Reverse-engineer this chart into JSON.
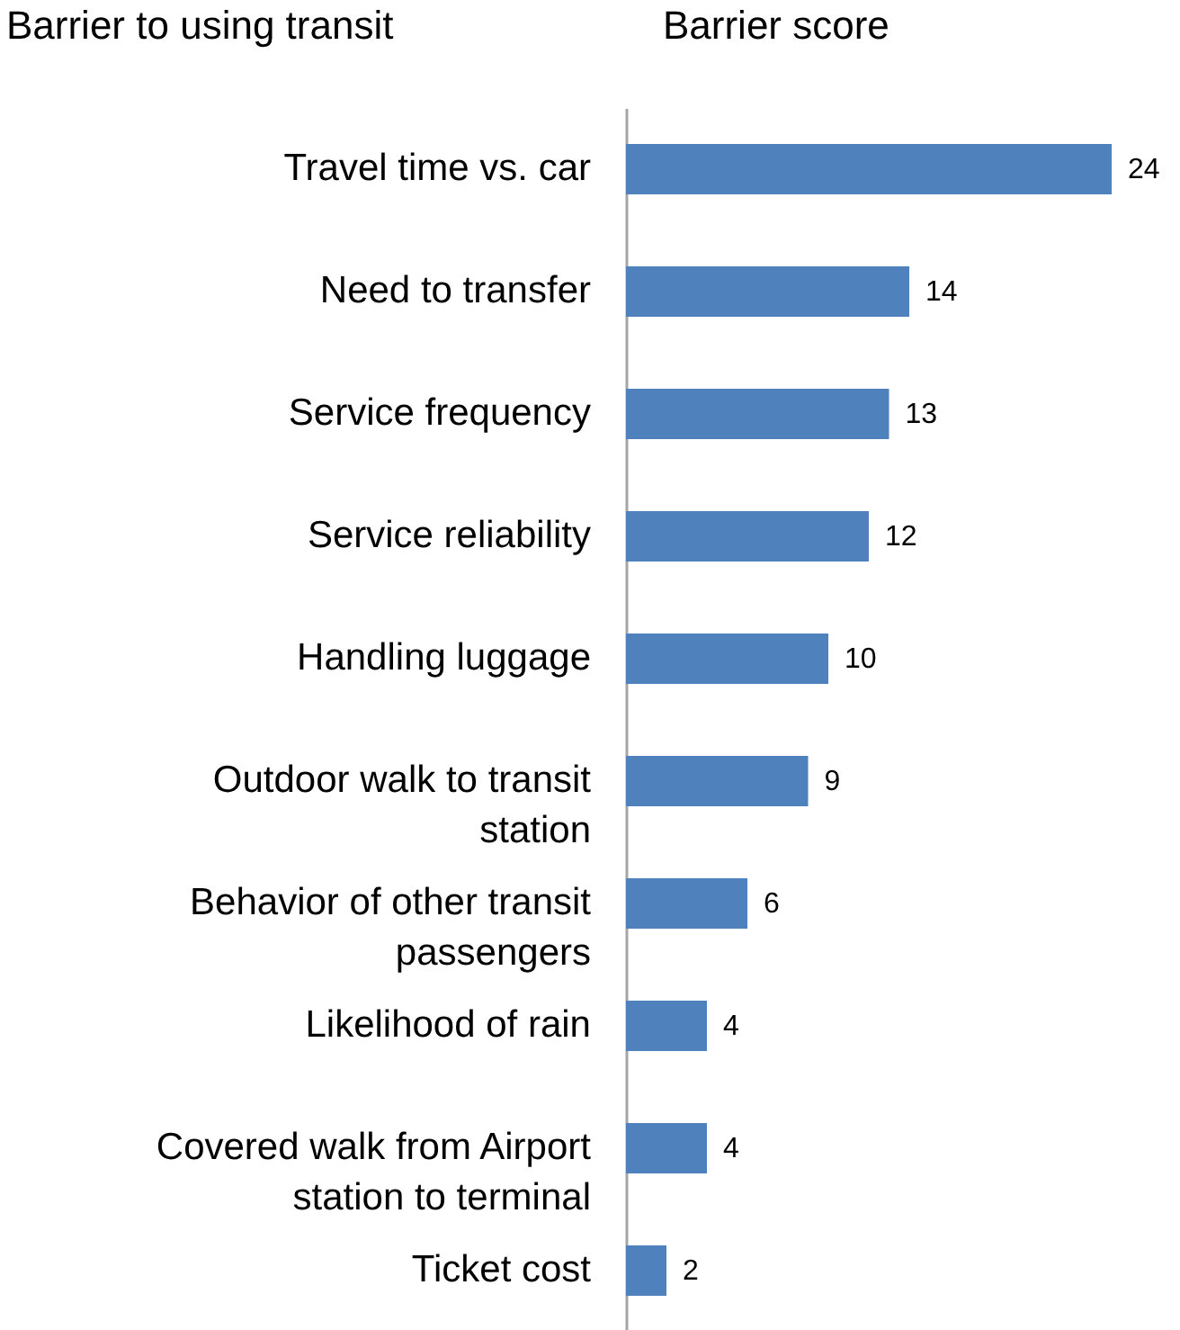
{
  "chart_data": {
    "type": "bar",
    "orientation": "horizontal",
    "ylabel": "Barrier to using transit",
    "xlabel": "Barrier score",
    "categories": [
      "Travel time vs. car",
      "Need to transfer",
      "Service frequency",
      "Service reliability",
      "Handling luggage",
      "Outdoor walk to transit station",
      "Behavior of other transit passengers",
      "Likelihood of rain",
      "Covered walk from Airport station to terminal",
      "Ticket cost"
    ],
    "values": [
      24,
      14,
      13,
      12,
      10,
      9,
      6,
      4,
      4,
      2
    ],
    "color": "#4f81bd",
    "data_labels": true
  }
}
